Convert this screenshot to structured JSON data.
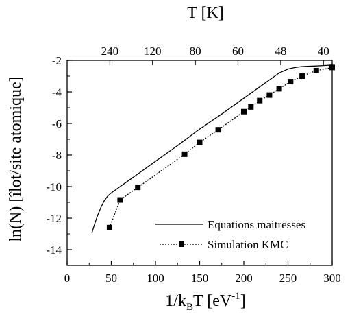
{
  "chart_data": {
    "type": "line",
    "title": "",
    "xlabel_main": "1/k",
    "xlabel_sub": "B",
    "xlabel_tail": "T [eV",
    "xlabel_sup": "-1",
    "xlabel_close": "]",
    "ylabel": "ln(N) [îlot/site atomique]",
    "x2label": "T [K]",
    "xlim": [
      0,
      300
    ],
    "ylim": [
      -15,
      -2
    ],
    "xticks": [
      0,
      50,
      100,
      150,
      200,
      250,
      300
    ],
    "yticks": [
      -2,
      -4,
      -6,
      -8,
      -10,
      -12,
      -14
    ],
    "top_ticks": [
      {
        "label": "240",
        "x": 48.4
      },
      {
        "label": "120",
        "x": 96.7
      },
      {
        "label": "80",
        "x": 145.1
      },
      {
        "label": "60",
        "x": 193.4
      },
      {
        "label": "48",
        "x": 241.8
      },
      {
        "label": "40",
        "x": 290.1
      }
    ],
    "legend_position": "bottom-right",
    "series": [
      {
        "name": "Equations maitresses",
        "style": "solid",
        "marker": "none",
        "x": [
          28,
          31,
          34,
          38,
          42,
          46,
          50,
          55,
          60,
          70,
          80,
          100,
          125,
          150,
          175,
          200,
          220,
          240,
          250,
          258,
          265,
          272,
          280,
          290,
          300
        ],
        "y": [
          -12.95,
          -12.4,
          -11.9,
          -11.35,
          -10.9,
          -10.6,
          -10.4,
          -10.2,
          -10.0,
          -9.6,
          -9.2,
          -8.4,
          -7.4,
          -6.35,
          -5.4,
          -4.4,
          -3.6,
          -2.8,
          -2.55,
          -2.45,
          -2.4,
          -2.38,
          -2.36,
          -2.33,
          -2.3
        ]
      },
      {
        "name": "Simulation KMC",
        "style": "dotted",
        "marker": "square",
        "x": [
          48,
          60,
          80,
          133,
          150,
          171,
          200,
          208,
          218,
          229,
          240,
          253,
          266,
          282,
          300
        ],
        "y": [
          -12.6,
          -10.85,
          -10.05,
          -7.95,
          -7.2,
          -6.4,
          -5.25,
          -4.95,
          -4.55,
          -4.2,
          -3.8,
          -3.35,
          -3.0,
          -2.65,
          -2.45
        ]
      }
    ]
  }
}
